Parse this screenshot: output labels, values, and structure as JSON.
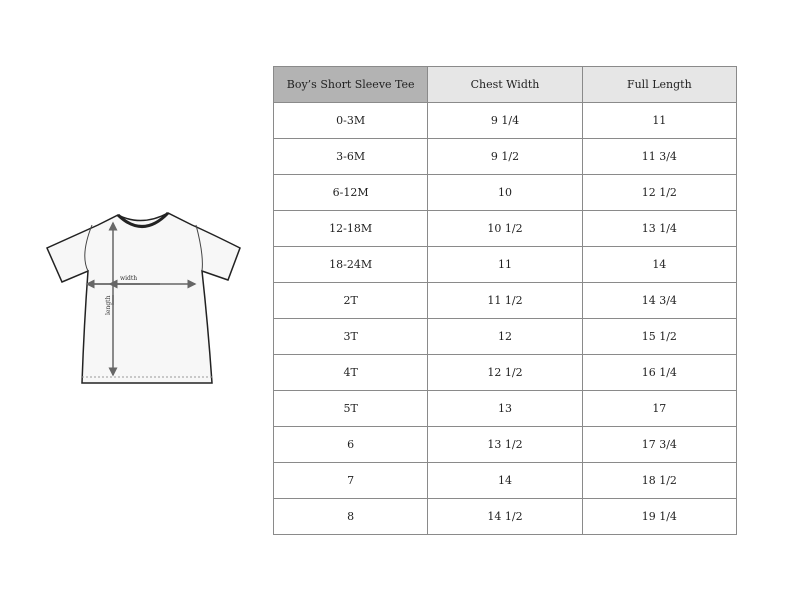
{
  "diagram": {
    "width_label": "width",
    "length_label": "length"
  },
  "table": {
    "headers": [
      "Boy’s Short Sleeve Tee",
      "Chest Width",
      "Full Length"
    ],
    "rows": [
      [
        "0-3M",
        "9 1/4",
        "11"
      ],
      [
        "3-6M",
        "9 1/2",
        "11 3/4"
      ],
      [
        "6-12M",
        "10",
        "12 1/2"
      ],
      [
        "12-18M",
        "10 1/2",
        "13 1/4"
      ],
      [
        "18-24M",
        "11",
        "14"
      ],
      [
        "2T",
        "11 1/2",
        "14 3/4"
      ],
      [
        "3T",
        "12",
        "15 1/2"
      ],
      [
        "4T",
        "12 1/2",
        "16 1/4"
      ],
      [
        "5T",
        "13",
        "17"
      ],
      [
        "6",
        "13 1/2",
        "17 3/4"
      ],
      [
        "7",
        "14",
        "18 1/2"
      ],
      [
        "8",
        "14 1/2",
        "19 1/4"
      ]
    ]
  },
  "colors": {
    "header_first": "#b3b3b3",
    "header": "#e6e6e6",
    "border": "#8a8a8a"
  }
}
